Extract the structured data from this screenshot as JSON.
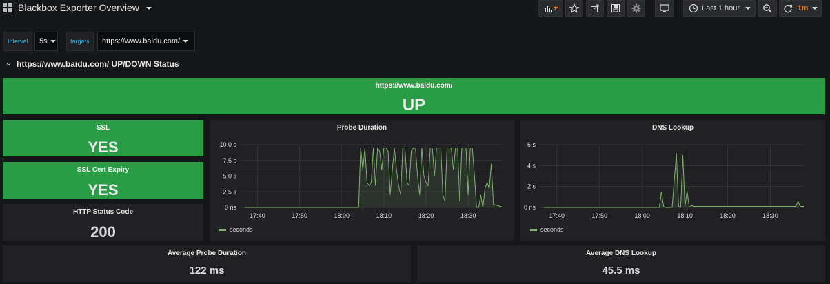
{
  "navbar": {
    "title": "Blackbox Exporter Overview",
    "time_range": "Last 1 hour",
    "refresh": "1m"
  },
  "variables": {
    "interval": {
      "label": "Interval",
      "value": "5s"
    },
    "targets": {
      "label": "targets",
      "value": "https://www.baidu.com/"
    }
  },
  "row": {
    "title": "https://www.baidu.com/ UP/DOWN Status"
  },
  "panels": {
    "status": {
      "title": "https://www.baidu.com/",
      "value": "UP"
    },
    "ssl": {
      "title": "SSL",
      "value": "YES"
    },
    "ssl_expiry": {
      "title": "SSL Cert Expiry",
      "value": "YES"
    },
    "http_code": {
      "title": "HTTP Status Code",
      "value": "200"
    },
    "probe_duration": {
      "title": "Probe Duration",
      "legend": "seconds"
    },
    "dns_lookup": {
      "title": "DNS Lookup",
      "legend": "seconds"
    },
    "avg_probe": {
      "title": "Average Probe Duration",
      "value": "122 ms"
    },
    "avg_dns": {
      "title": "Average DNS Lookup",
      "value": "45.5 ms"
    }
  },
  "colors": {
    "up_green": "#299c46",
    "series_green": "#7eb26d",
    "panel_bg": "#212124",
    "page_bg": "#161719",
    "refresh_orange": "#eb7b18",
    "variable_label_blue": "#33b5e5"
  },
  "chart_data": [
    {
      "type": "line",
      "title": "Probe Duration",
      "series": [
        {
          "name": "seconds",
          "x": [
            "17:37",
            "18:04",
            "18:04.5",
            "18:05",
            "18:05.5",
            "18:06",
            "18:06.5",
            "18:07",
            "18:07.5",
            "18:08",
            "18:08.5",
            "18:09",
            "18:09.5",
            "18:10",
            "18:10.5",
            "18:11",
            "18:11.5",
            "18:12",
            "18:12.5",
            "18:13",
            "18:13.5",
            "18:14",
            "18:14.5",
            "18:15",
            "18:15.5",
            "18:16",
            "18:16.5",
            "18:17",
            "18:17.5",
            "18:18",
            "18:18.5",
            "18:19",
            "18:19.5",
            "18:20",
            "18:20.5",
            "18:21",
            "18:21.5",
            "18:22",
            "18:22.5",
            "18:23",
            "18:23.5",
            "18:24",
            "18:24.5",
            "18:25",
            "18:25.5",
            "18:26",
            "18:26.5",
            "18:27",
            "18:27.5",
            "18:28",
            "18:28.5",
            "18:29",
            "18:29.5",
            "18:30",
            "18:30.5",
            "18:31",
            "18:31.5",
            "18:32",
            "18:32.5",
            "18:33",
            "18:33.5",
            "18:34",
            "18:34.5",
            "18:35",
            "18:35.5",
            "18:36",
            "18:37",
            "18:38"
          ],
          "y": [
            0,
            0,
            9.5,
            6,
            9.5,
            4,
            3.5,
            4,
            9.5,
            3.5,
            9.5,
            9,
            6,
            9.5,
            9.5,
            9,
            2,
            6,
            9.5,
            6,
            3.5,
            2,
            9.5,
            9.5,
            4,
            3.5,
            9,
            9.5,
            9.5,
            5,
            2,
            9.5,
            5,
            4,
            3.5,
            9.5,
            9.5,
            5,
            9.5,
            9.5,
            9.5,
            2,
            1,
            9.5,
            9.5,
            9.5,
            6,
            9.5,
            9.5,
            1,
            9.5,
            9.5,
            9.5,
            2,
            9.5,
            9.5,
            5,
            0,
            0,
            2,
            0,
            3,
            4,
            3,
            7,
            0.5,
            0.3,
            0.1
          ]
        }
      ],
      "y_ticks": [
        "0 ns",
        "2.5 s",
        "5.0 s",
        "7.5 s",
        "10.0 s"
      ],
      "x_ticks": [
        "17:40",
        "17:50",
        "18:00",
        "18:10",
        "18:20",
        "18:30"
      ],
      "ylim": [
        0,
        10
      ],
      "grid": true,
      "legend": "bottom-left"
    },
    {
      "type": "line",
      "title": "DNS Lookup",
      "series": [
        {
          "name": "seconds",
          "x": [
            "17:37",
            "18:04",
            "18:04.5",
            "18:05",
            "18:05.5",
            "18:06",
            "18:07",
            "18:08",
            "18:08.5",
            "18:09",
            "18:09.5",
            "18:10",
            "18:10.5",
            "18:11",
            "18:11.5",
            "18:12",
            "18:20",
            "18:30",
            "18:36",
            "18:36.5",
            "18:37",
            "18:38"
          ],
          "y": [
            0,
            0,
            1.5,
            0.1,
            0,
            0,
            0,
            5.2,
            0.1,
            0,
            5.0,
            0.1,
            1.6,
            0,
            0.2,
            0.1,
            0.1,
            0.1,
            0.1,
            0.6,
            0.1,
            0.1
          ]
        }
      ],
      "y_ticks": [
        "0 ns",
        "2 s",
        "4 s",
        "6 s"
      ],
      "x_ticks": [
        "17:40",
        "17:50",
        "18:00",
        "18:10",
        "18:20",
        "18:30"
      ],
      "ylim": [
        0,
        6
      ],
      "grid": true,
      "legend": "bottom-left"
    }
  ]
}
